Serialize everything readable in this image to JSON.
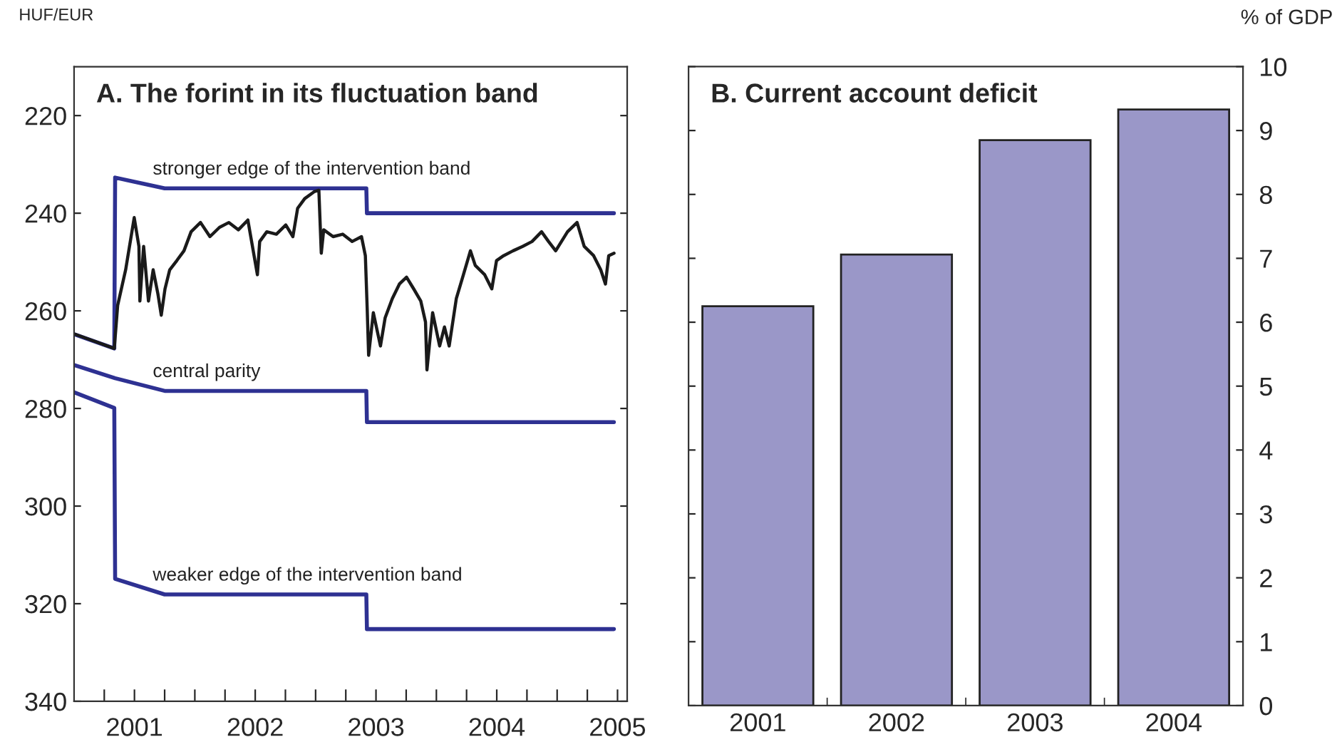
{
  "chart_data": [
    {
      "type": "line",
      "title": "A. The forint in its fluctuation band",
      "ylabel": "HUF/EUR",
      "xlim": [
        2001.0,
        2005.58
      ],
      "ylim": [
        340,
        210
      ],
      "yticks": [
        220,
        240,
        260,
        280,
        300,
        320,
        340
      ],
      "xticks": [
        {
          "value": 2001.25,
          "label": null
        },
        {
          "value": 2001.5,
          "label": "2001"
        },
        {
          "value": 2001.75,
          "label": null
        },
        {
          "value": 2002.0,
          "label": null
        },
        {
          "value": 2002.25,
          "label": null
        },
        {
          "value": 2002.5,
          "label": "2002"
        },
        {
          "value": 2002.75,
          "label": null
        },
        {
          "value": 2003.0,
          "label": null
        },
        {
          "value": 2003.25,
          "label": null
        },
        {
          "value": 2003.5,
          "label": "2003"
        },
        {
          "value": 2003.75,
          "label": null
        },
        {
          "value": 2004.0,
          "label": null
        },
        {
          "value": 2004.25,
          "label": null
        },
        {
          "value": 2004.5,
          "label": "2004"
        },
        {
          "value": 2004.75,
          "label": null
        },
        {
          "value": 2005.0,
          "label": null
        },
        {
          "value": 2005.25,
          "label": null
        },
        {
          "value": 2005.5,
          "label": "2005"
        }
      ],
      "series": [
        {
          "name": "stronger edge of the intervention band",
          "color": "#2e3192",
          "x": [
            2001.0,
            2001.333,
            2001.34,
            2001.75,
            2003.42,
            2003.425,
            2005.47
          ],
          "values": [
            264.8,
            267.7,
            232.7,
            234.9,
            234.9,
            240,
            240
          ]
        },
        {
          "name": "central parity",
          "color": "#2e3192",
          "x": [
            2001.0,
            2001.34,
            2001.75,
            2003.42,
            2003.425,
            2005.47
          ],
          "values": [
            271.1,
            273.8,
            276.4,
            276.4,
            282.8,
            282.8
          ]
        },
        {
          "name": "weaker edge of the intervention band",
          "color": "#2e3192",
          "x": [
            2001.0,
            2001.333,
            2001.34,
            2001.75,
            2003.42,
            2003.425,
            2005.47
          ],
          "values": [
            276.7,
            279.9,
            314.9,
            318.1,
            318.1,
            325.2,
            325.2
          ]
        },
        {
          "color": "#1a1a1a",
          "x": [
            2001.01,
            2001.333,
            2001.361,
            2001.427,
            2001.498,
            2001.537,
            2001.545,
            2001.576,
            2001.616,
            2001.655,
            2001.694,
            2001.722,
            2001.753,
            2001.792,
            2001.851,
            2001.91,
            2001.969,
            2002.047,
            2002.125,
            2002.204,
            2002.282,
            2002.361,
            2002.439,
            2002.518,
            2002.537,
            2002.596,
            2002.675,
            2002.753,
            2002.812,
            2002.851,
            2002.91,
            2002.988,
            2003.027,
            2003.047,
            2003.067,
            2003.145,
            2003.224,
            2003.302,
            2003.38,
            2003.412,
            2003.427,
            2003.439,
            2003.478,
            2003.537,
            2003.576,
            2003.635,
            2003.694,
            2003.753,
            2003.812,
            2003.871,
            2003.91,
            2003.922,
            2003.969,
            2004.027,
            2004.067,
            2004.106,
            2004.165,
            2004.224,
            2004.282,
            2004.322,
            2004.4,
            2004.459,
            2004.498,
            2004.557,
            2004.635,
            2004.714,
            2004.792,
            2004.871,
            2004.929,
            2004.988,
            2005.086,
            2005.165,
            2005.224,
            2005.302,
            2005.361,
            2005.4,
            2005.427,
            2005.471
          ],
          "values": [
            264.8,
            267.7,
            258.9,
            251.6,
            240.9,
            246.8,
            258.0,
            246.8,
            258.0,
            251.6,
            256.5,
            260.9,
            255.5,
            251.6,
            249.7,
            247.7,
            243.8,
            241.9,
            244.8,
            242.9,
            241.9,
            243.4,
            241.4,
            252.6,
            245.8,
            243.8,
            244.3,
            242.4,
            244.8,
            239.0,
            237.0,
            235.6,
            235.3,
            248.2,
            243.4,
            244.8,
            244.3,
            245.8,
            244.8,
            248.7,
            259.4,
            269.1,
            260.4,
            267.2,
            261.4,
            257.5,
            254.5,
            253.1,
            255.5,
            258.0,
            262.3,
            272.1,
            260.4,
            267.2,
            263.3,
            267.2,
            257.5,
            252.6,
            247.7,
            250.7,
            252.6,
            255.5,
            249.7,
            248.7,
            247.7,
            246.8,
            245.8,
            243.8,
            245.8,
            247.7,
            243.8,
            241.9,
            246.8,
            248.7,
            251.6,
            254.5,
            248.7,
            248.2
          ]
        }
      ]
    },
    {
      "type": "bar",
      "title": "B. Current account deficit",
      "ylabel": "% of GDP",
      "categories": [
        "2001",
        "2002",
        "2003",
        "2004"
      ],
      "values": [
        6.25,
        7.06,
        8.85,
        9.33
      ],
      "color": "#9a97c8",
      "ylim": [
        0,
        10
      ],
      "yticks": [
        0,
        1,
        2,
        3,
        4,
        5,
        6,
        7,
        8,
        9,
        10
      ]
    }
  ]
}
